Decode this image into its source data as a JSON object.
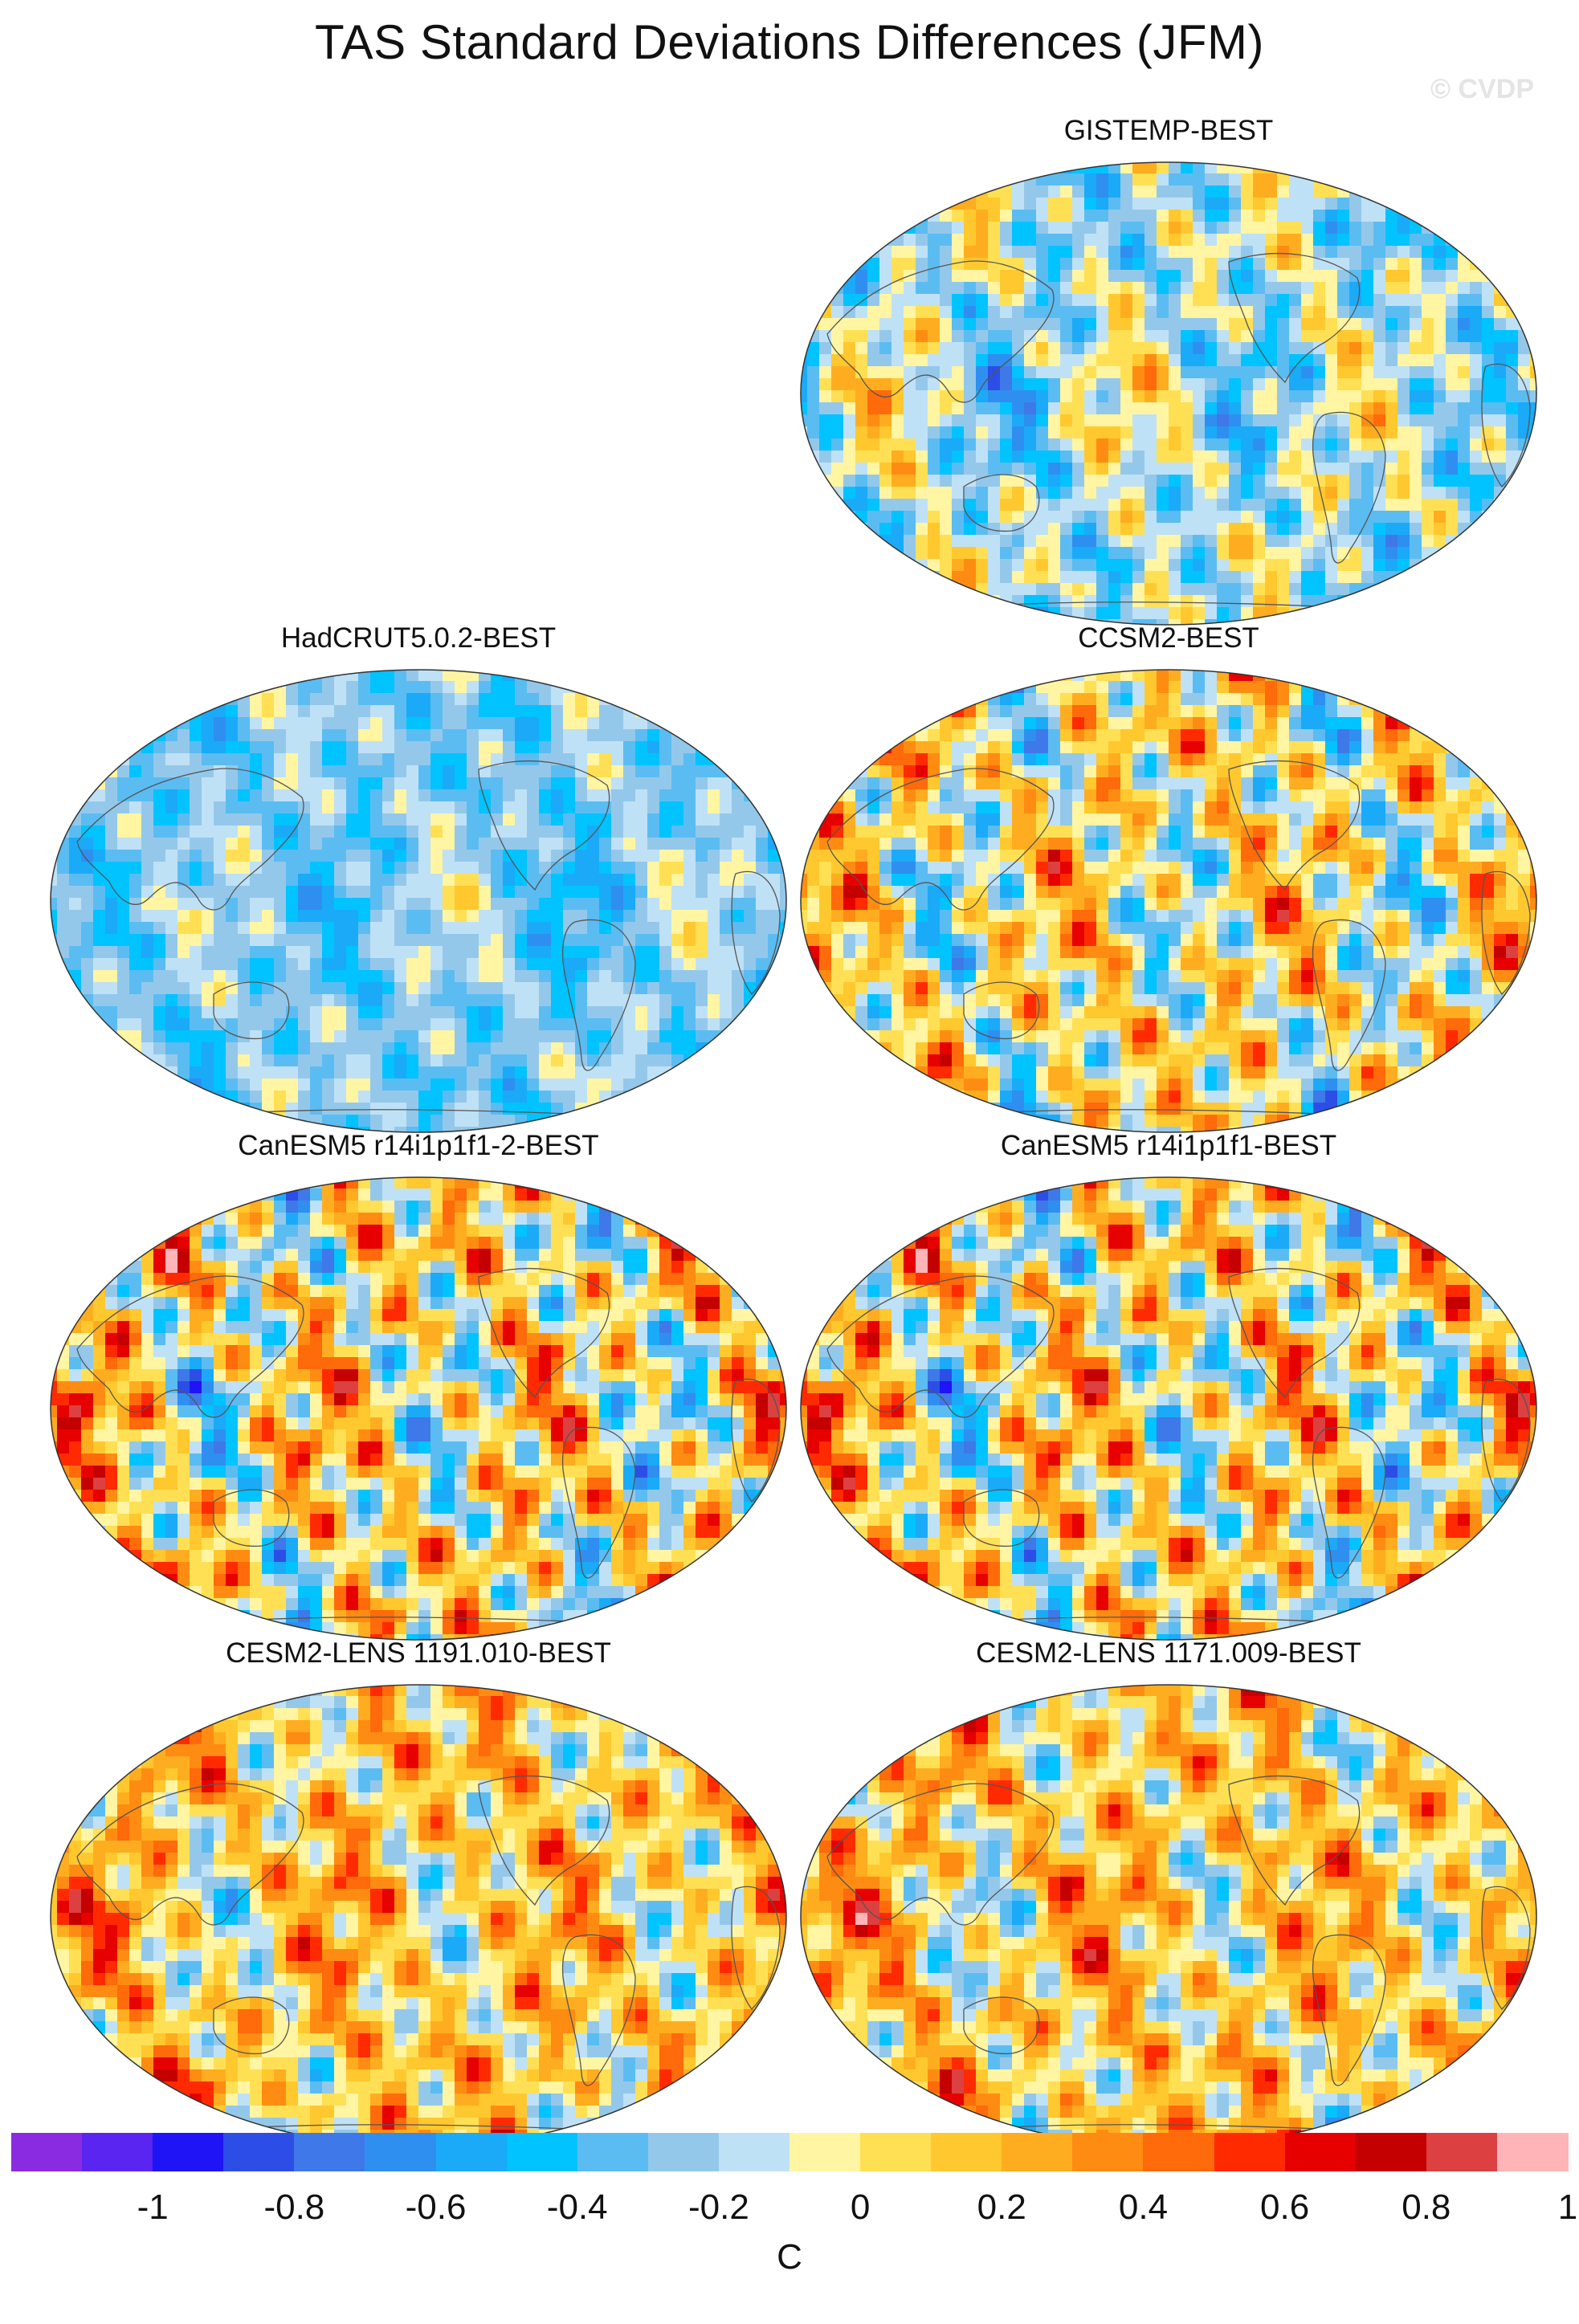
{
  "title": "TAS Standard Deviations Differences (JFM)",
  "watermark": "© CVDP",
  "panels": [
    {
      "title": "GISTEMP-BEST",
      "bias": -0.08,
      "amp": 0.55,
      "seed": 3
    },
    {
      "title": "HadCRUT5.0.2-BEST",
      "bias": -0.18,
      "amp": 0.35,
      "seed": 7
    },
    {
      "title": "CCSM2-BEST",
      "bias": 0.1,
      "amp": 0.75,
      "seed": 11
    },
    {
      "title": "CanESM5 r14i1p1f1-2-BEST",
      "bias": 0.12,
      "amp": 0.85,
      "seed": 17
    },
    {
      "title": "CanESM5 r14i1p1f1-BEST",
      "bias": 0.12,
      "amp": 0.85,
      "seed": 17
    },
    {
      "title": "CESM2-LENS 1191.010-BEST",
      "bias": 0.2,
      "amp": 0.65,
      "seed": 23
    },
    {
      "title": "CESM2-LENS 1171.009-BEST",
      "bias": 0.2,
      "amp": 0.65,
      "seed": 29
    }
  ],
  "colorbar": {
    "colors": [
      "#8a2be2",
      "#5a25f0",
      "#1e14f5",
      "#2c4ee6",
      "#3f78e8",
      "#2f8ff0",
      "#1aaaf8",
      "#00c3ff",
      "#5bbcf2",
      "#94c8ea",
      "#bfe1f6",
      "#fff5a2",
      "#ffe055",
      "#ffc82e",
      "#ffad20",
      "#ff8c12",
      "#ff6a0a",
      "#ff2a00",
      "#e60000",
      "#c40000",
      "#dc4040",
      "#ffb4b8"
    ],
    "ticks": [
      "-1",
      "-0.8",
      "-0.6",
      "-0.4",
      "-0.2",
      "0",
      "0.2",
      "0.4",
      "0.6",
      "0.8",
      "1"
    ],
    "unit": "C"
  }
}
